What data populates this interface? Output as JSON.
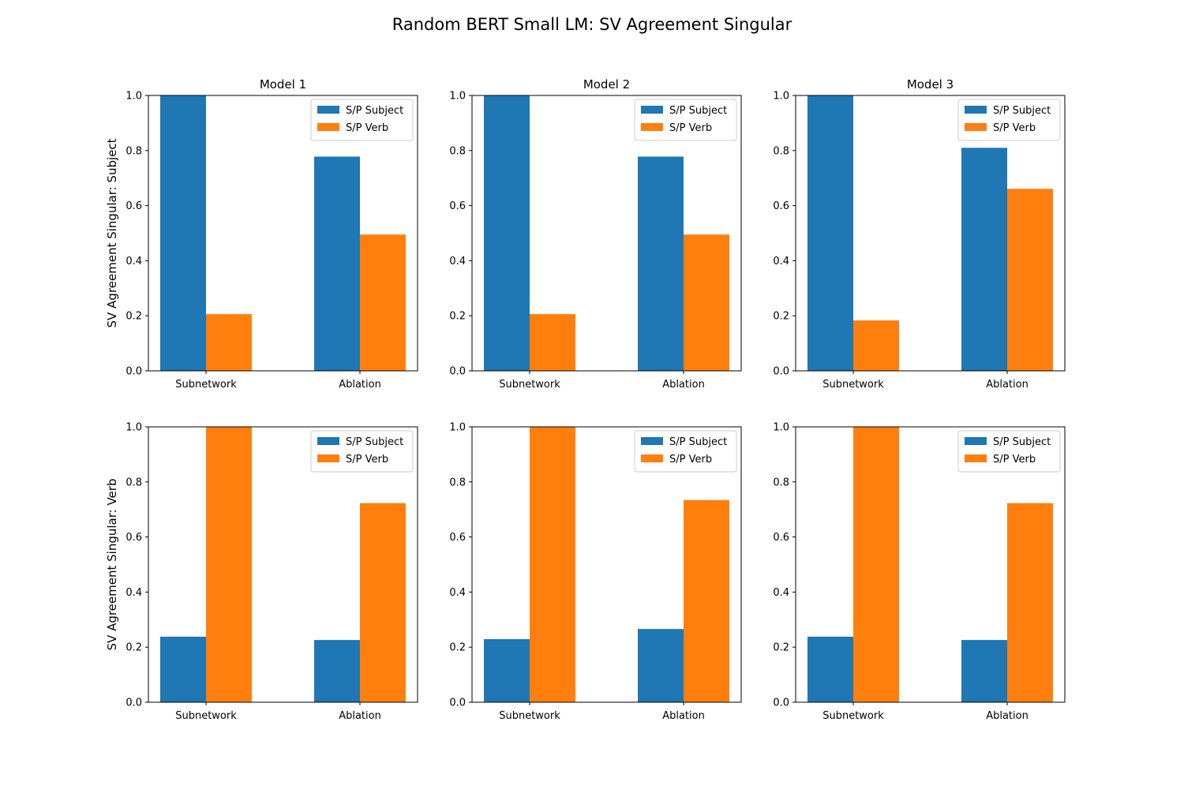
{
  "figure": {
    "title": "Random BERT Small LM: SV Agreement Singular"
  },
  "colors": {
    "S/P Subject": "#1f77b4",
    "S/P Verb": "#ff7f0e"
  },
  "chart_data": [
    {
      "type": "bar",
      "title": "Model 1",
      "ylabel": "SV Agreement Singular: Subject",
      "categories": [
        "Subnetwork",
        "Ablation"
      ],
      "ylim": [
        0,
        1
      ],
      "yticks": [
        "0.0",
        "0.2",
        "0.4",
        "0.6",
        "0.8",
        "1.0"
      ],
      "legend": "top-right",
      "series": [
        {
          "name": "S/P Subject",
          "values": [
            1.0,
            0.778
          ]
        },
        {
          "name": "S/P Verb",
          "values": [
            0.206,
            0.495
          ]
        }
      ]
    },
    {
      "type": "bar",
      "title": "Model 2",
      "ylabel": "",
      "categories": [
        "Subnetwork",
        "Ablation"
      ],
      "ylim": [
        0,
        1
      ],
      "yticks": [
        "0.0",
        "0.2",
        "0.4",
        "0.6",
        "0.8",
        "1.0"
      ],
      "legend": "top-right",
      "series": [
        {
          "name": "S/P Subject",
          "values": [
            1.0,
            0.778
          ]
        },
        {
          "name": "S/P Verb",
          "values": [
            0.206,
            0.495
          ]
        }
      ]
    },
    {
      "type": "bar",
      "title": "Model 3",
      "ylabel": "",
      "categories": [
        "Subnetwork",
        "Ablation"
      ],
      "ylim": [
        0,
        1
      ],
      "yticks": [
        "0.0",
        "0.2",
        "0.4",
        "0.6",
        "0.8",
        "1.0"
      ],
      "legend": "top-right",
      "series": [
        {
          "name": "S/P Subject",
          "values": [
            1.0,
            0.81
          ]
        },
        {
          "name": "S/P Verb",
          "values": [
            0.183,
            0.661
          ]
        }
      ]
    },
    {
      "type": "bar",
      "title": "",
      "ylabel": "SV Agreement Singular: Verb",
      "categories": [
        "Subnetwork",
        "Ablation"
      ],
      "ylim": [
        0,
        1
      ],
      "yticks": [
        "0.0",
        "0.2",
        "0.4",
        "0.6",
        "0.8",
        "1.0"
      ],
      "legend": "top-right",
      "series": [
        {
          "name": "S/P Subject",
          "values": [
            0.238,
            0.226
          ]
        },
        {
          "name": "S/P Verb",
          "values": [
            1.0,
            0.723
          ]
        }
      ]
    },
    {
      "type": "bar",
      "title": "",
      "ylabel": "",
      "categories": [
        "Subnetwork",
        "Ablation"
      ],
      "ylim": [
        0,
        1
      ],
      "yticks": [
        "0.0",
        "0.2",
        "0.4",
        "0.6",
        "0.8",
        "1.0"
      ],
      "legend": "top-right",
      "series": [
        {
          "name": "S/P Subject",
          "values": [
            0.229,
            0.266
          ]
        },
        {
          "name": "S/P Verb",
          "values": [
            1.0,
            0.734
          ]
        }
      ]
    },
    {
      "type": "bar",
      "title": "",
      "ylabel": "",
      "categories": [
        "Subnetwork",
        "Ablation"
      ],
      "ylim": [
        0,
        1
      ],
      "yticks": [
        "0.0",
        "0.2",
        "0.4",
        "0.6",
        "0.8",
        "1.0"
      ],
      "legend": "top-right",
      "series": [
        {
          "name": "S/P Subject",
          "values": [
            0.238,
            0.226
          ]
        },
        {
          "name": "S/P Verb",
          "values": [
            1.0,
            0.723
          ]
        }
      ]
    }
  ]
}
